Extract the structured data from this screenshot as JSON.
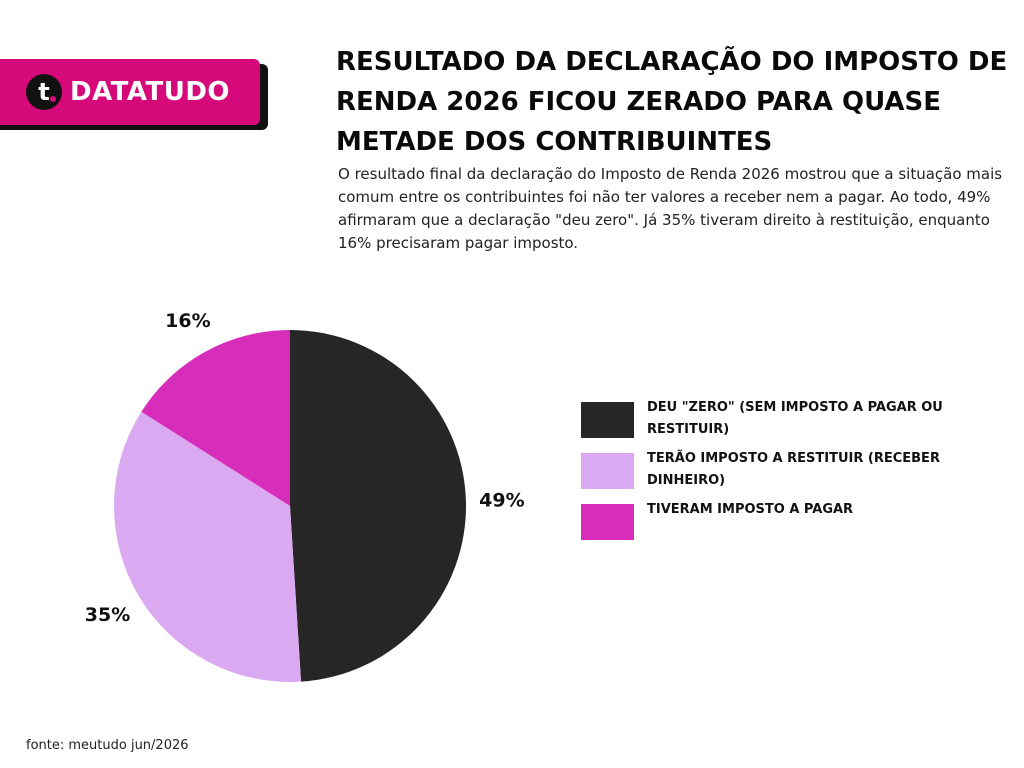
{
  "brand": {
    "logo_letter": "t",
    "name": "DATATUDO",
    "colors": {
      "badge": "#d6097a",
      "shadow": "#111111"
    }
  },
  "title": "RESULTADO DA DECLARAÇÃO DO IMPOSTO DE RENDA 2026 FICOU ZERADO PARA QUASE METADE DOS CONTRIBUINTES",
  "subtitle": "O resultado final da declaração do Imposto de Renda 2026 mostrou que a situação mais comum entre os contribuintes foi não ter valores a receber nem a pagar. Ao todo, 49% afirmaram que a declaração \"deu zero\". Já 35% tiveram direito à restituição, enquanto 16% precisaram pagar imposto.",
  "chart_data": {
    "type": "pie",
    "legend_position": "right",
    "slices": [
      {
        "label": "DEU \"ZERO\" (SEM IMPOSTO A PAGAR OU RESTITUIR)",
        "value": 49,
        "value_label": "49%",
        "color": "#262626"
      },
      {
        "label": "TERÃO IMPOSTO A RESTITUIR (RECEBER DINHEIRO)",
        "value": 35,
        "value_label": "35%",
        "color": "#dba9f1"
      },
      {
        "label": "TIVERAM IMPOSTO A PAGAR",
        "value": 16,
        "value_label": "16%",
        "color": "#d72dbb"
      }
    ]
  },
  "source": "fonte: meutudo jun/2026"
}
